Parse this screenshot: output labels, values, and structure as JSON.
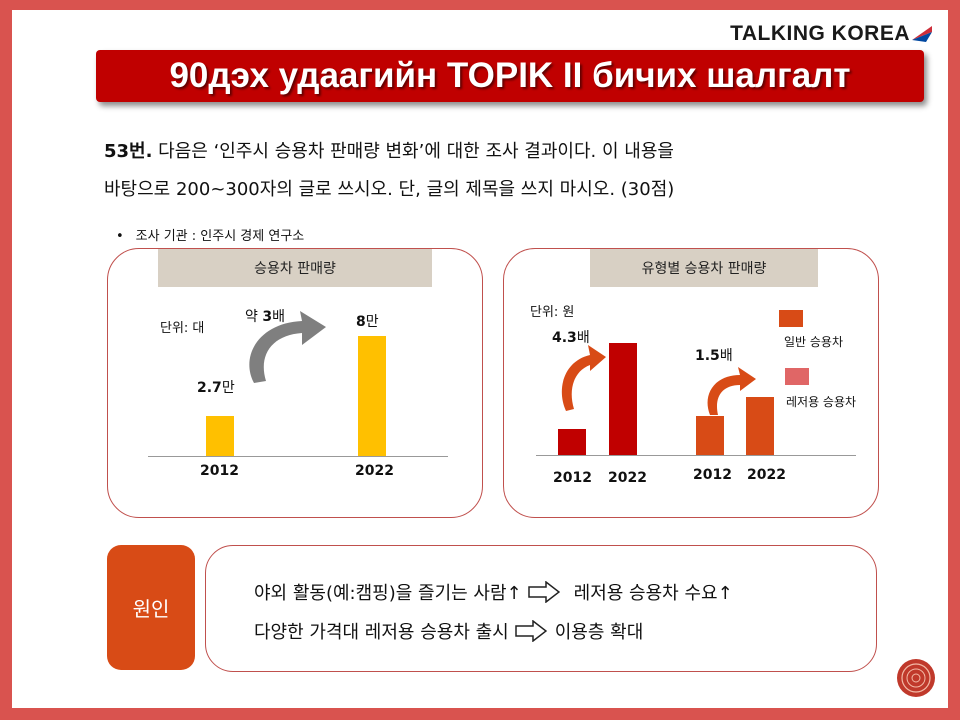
{
  "brand": {
    "name": "TALKING KOREA",
    "flag_colors": [
      "#cd2e3a",
      "#0047a0"
    ]
  },
  "title": "90дэх удаагийн TOPIK II бичих шалгалт",
  "question": {
    "number": "53번.",
    "line1_rest": " 다음은 ‘인주시 승용차 판매량 변화’에 대한 조사 결과이다. 이 내용을",
    "line2": "바탕으로 200~300자의 글로 쓰시오. 단, 글의 제목을 쓰지 마시오. (30점)"
  },
  "source": {
    "bullet": "•",
    "text": "조사 기관 : 인주시 경제 연구소"
  },
  "chart_data": [
    {
      "type": "bar",
      "title": "승용차 판매량",
      "unit_label": "단위: 대",
      "categories": [
        "2012",
        "2022"
      ],
      "values": [
        27000,
        80000
      ],
      "value_labels": [
        {
          "num": "2.7",
          "suffix": "만"
        },
        {
          "num": "8",
          "suffix": "만"
        }
      ],
      "annotation": {
        "prefix": "약 ",
        "num": "3",
        "suffix": "배"
      },
      "ylim": [
        0,
        100000
      ],
      "bar_color": "#ffc000",
      "arrow_color": "#7f7f7f"
    },
    {
      "type": "bar",
      "title": "유형별 승용차 판매량",
      "unit_label": "단위: 원",
      "groups": [
        {
          "categories": [
            "2012",
            "2022"
          ],
          "values": [
            1.0,
            4.3
          ],
          "annotation": {
            "num": "4.3",
            "suffix": "배"
          },
          "color": "#c00000"
        },
        {
          "categories": [
            "2012",
            "2022"
          ],
          "values": [
            1.0,
            1.5
          ],
          "annotation": {
            "num": "1.5",
            "suffix": "배"
          },
          "color": "#d84b16"
        }
      ],
      "legend": [
        {
          "label": "일반 승용차",
          "color": "#d84b16"
        },
        {
          "label": "레저용 승용차",
          "color": "#e06666"
        }
      ],
      "arrow_color": "#d84b16"
    }
  ],
  "cause": {
    "label": "원인",
    "line1_left": "야외 활동(예:캠핑)을 즐기는 사람↑",
    "line1_right": "레저용 승용차 수요↑",
    "line2_left": "다양한 가격대 레저용 승용차 출시",
    "line2_right": "이용층 확대",
    "box_color": "#d84b16"
  }
}
